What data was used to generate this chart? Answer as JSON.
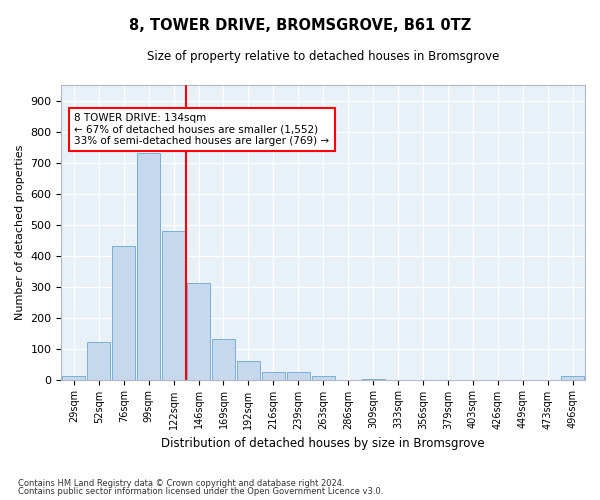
{
  "title1": "8, TOWER DRIVE, BROMSGROVE, B61 0TZ",
  "title2": "Size of property relative to detached houses in Bromsgrove",
  "xlabel": "Distribution of detached houses by size in Bromsgrove",
  "ylabel": "Number of detached properties",
  "bar_labels": [
    "29sqm",
    "52sqm",
    "76sqm",
    "99sqm",
    "122sqm",
    "146sqm",
    "169sqm",
    "192sqm",
    "216sqm",
    "239sqm",
    "263sqm",
    "286sqm",
    "309sqm",
    "333sqm",
    "356sqm",
    "379sqm",
    "403sqm",
    "426sqm",
    "449sqm",
    "473sqm",
    "496sqm"
  ],
  "bar_values": [
    12,
    120,
    430,
    730,
    480,
    310,
    130,
    60,
    25,
    25,
    10,
    0,
    2,
    0,
    0,
    0,
    0,
    0,
    0,
    0,
    10
  ],
  "bar_color": "#c5d8ed",
  "bar_edge_color": "#7bafd4",
  "plot_bg_color": "#e8f0f8",
  "grid_color": "#ffffff",
  "property_line_color": "red",
  "property_line_x": 4.5,
  "annotation_text": "8 TOWER DRIVE: 134sqm\n← 67% of detached houses are smaller (1,552)\n33% of semi-detached houses are larger (769) →",
  "annotation_box_facecolor": "white",
  "annotation_box_edgecolor": "red",
  "ylim_max": 950,
  "yticks": [
    0,
    100,
    200,
    300,
    400,
    500,
    600,
    700,
    800,
    900
  ],
  "footnote1": "Contains HM Land Registry data © Crown copyright and database right 2024.",
  "footnote2": "Contains public sector information licensed under the Open Government Licence v3.0."
}
